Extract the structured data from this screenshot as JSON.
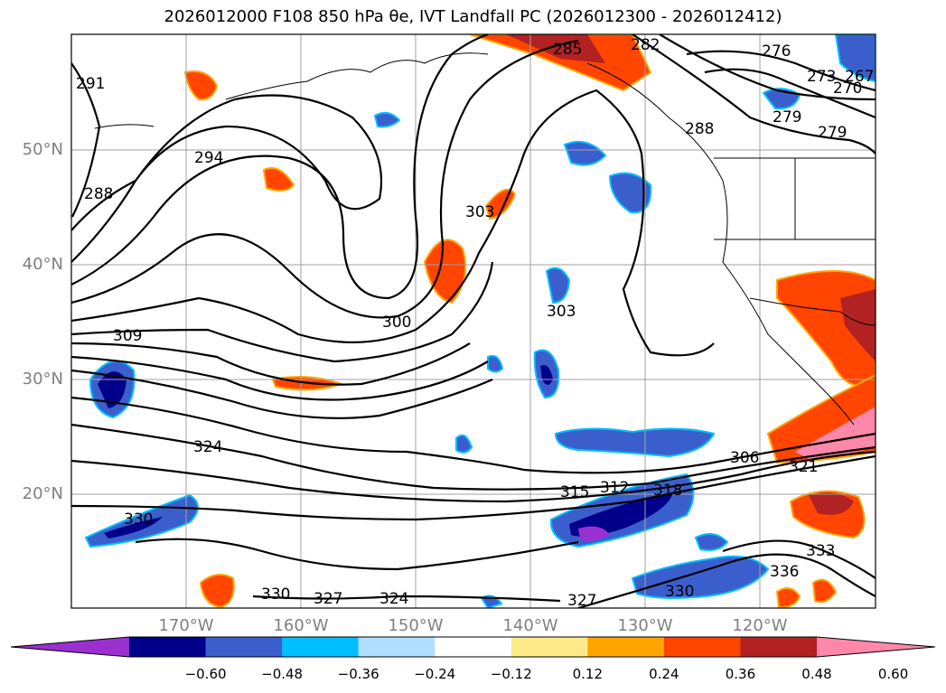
{
  "title": "2026012000 F108 850 hPa θe, IVT Landfall PC (2026012300 - 2026012412)",
  "lat_labels": [
    "50°N",
    "40°N",
    "30°N",
    "20°N"
  ],
  "lon_labels": [
    "170°W",
    "160°W",
    "150°W",
    "140°W",
    "130°W",
    "120°W"
  ],
  "colorbar": {
    "tick_labels": [
      "−0.60",
      "−0.48",
      "−0.36",
      "−0.24",
      "−0.12",
      "0.12",
      "0.24",
      "0.36",
      "0.48",
      "0.60"
    ],
    "colors": [
      "#9b30d0",
      "#00008b",
      "#3a5fcd",
      "#00bfff",
      "#b0e0ff",
      "#ffffff",
      "#ffeb8a",
      "#ffa500",
      "#ff4500",
      "#b22222",
      "#ff88aa"
    ]
  },
  "contour_labels": [
    "291",
    "294",
    "288",
    "309",
    "300",
    "303",
    "303",
    "324",
    "330",
    "315",
    "312",
    "318",
    "306",
    "321",
    "333",
    "336",
    "330",
    "327",
    "324",
    "327",
    "330",
    "276",
    "273",
    "270",
    "279",
    "279",
    "282",
    "285",
    "288",
    "267"
  ]
}
